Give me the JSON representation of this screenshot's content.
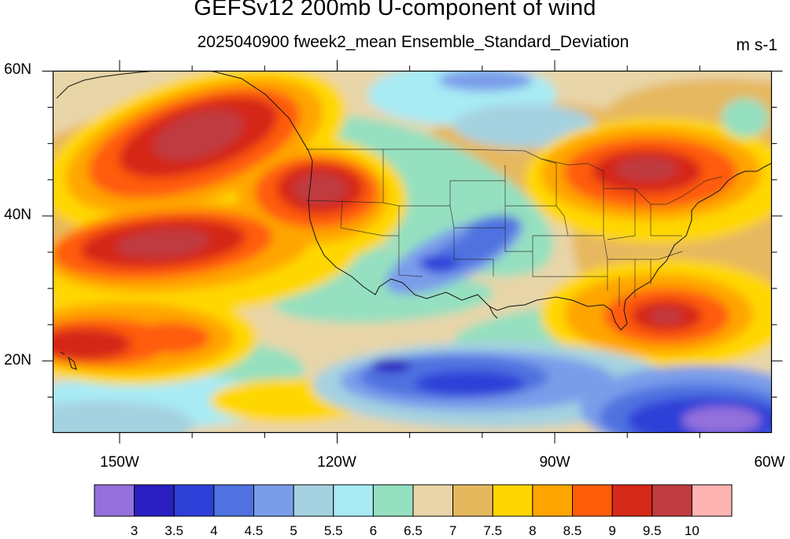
{
  "title": "GEFSv12 200mb U-component of wind",
  "subtitle": "2025040900 fweek2_mean Ensemble_Standard_Deviation",
  "units": "m s-1",
  "lat_labels": [
    "60N",
    "40N",
    "20N"
  ],
  "lon_labels": [
    "150W",
    "120W",
    "90W",
    "60W"
  ],
  "colorbar": {
    "labels": [
      "3",
      "3.5",
      "4",
      "4.5",
      "5",
      "5.5",
      "6",
      "6.5",
      "7",
      "7.5",
      "8",
      "8.5",
      "9",
      "9.5",
      "10"
    ],
    "colors": [
      "#9370DB",
      "#2A1FC0",
      "#2E3FD8",
      "#4F72E0",
      "#7A9DEA",
      "#A5D2E0",
      "#A8EBF5",
      "#95E0C0",
      "#E8D5A8",
      "#E6B85E",
      "#FFD700",
      "#FFA500",
      "#FF5C0A",
      "#D62818",
      "#BF3B40",
      "#FFB3B3"
    ]
  },
  "chart_data": {
    "type": "heatmap",
    "variable": "GEFSv12 200mb U-component of wind",
    "statistic": "2025040900 fweek2_mean Ensemble_Standard_Deviation",
    "units": "m s-1",
    "lon_range": [
      -160,
      -60
    ],
    "lat_range": [
      10,
      60
    ],
    "levels": [
      3,
      3.5,
      4,
      4.5,
      5,
      5.5,
      6,
      6.5,
      7,
      7.5,
      8,
      8.5,
      9,
      9.5,
      10
    ],
    "features": [
      {
        "lon": -143,
        "lat": 51,
        "value": 9.8
      },
      {
        "lon": -148,
        "lat": 36,
        "value": 9.5
      },
      {
        "lon": -117,
        "lat": 43,
        "value": 9.6
      },
      {
        "lon": -157,
        "lat": 23,
        "value": 9.0
      },
      {
        "lon": -135,
        "lat": 22,
        "value": 9.0
      },
      {
        "lon": -78,
        "lat": 46,
        "value": 9.5
      },
      {
        "lon": -72,
        "lat": 46,
        "value": 9.2
      },
      {
        "lon": -74,
        "lat": 27,
        "value": 9.3
      },
      {
        "lon": -104,
        "lat": 34,
        "value": 4.4
      },
      {
        "lon": -98,
        "lat": 36,
        "value": 4.5
      },
      {
        "lon": -100,
        "lat": 18,
        "value": 3.6
      },
      {
        "lon": -110,
        "lat": 19,
        "value": 3.5
      },
      {
        "lon": -70,
        "lat": 13,
        "value": 3.0
      },
      {
        "lon": -85,
        "lat": 12,
        "value": 3.6
      },
      {
        "lon": -100,
        "lat": 58,
        "value": 4.8
      },
      {
        "lon": -125,
        "lat": 12,
        "value": 6.5
      },
      {
        "lon": -150,
        "lat": 14,
        "value": 5.8
      },
      {
        "lon": -60,
        "lat": 58,
        "value": 6.8
      }
    ]
  }
}
